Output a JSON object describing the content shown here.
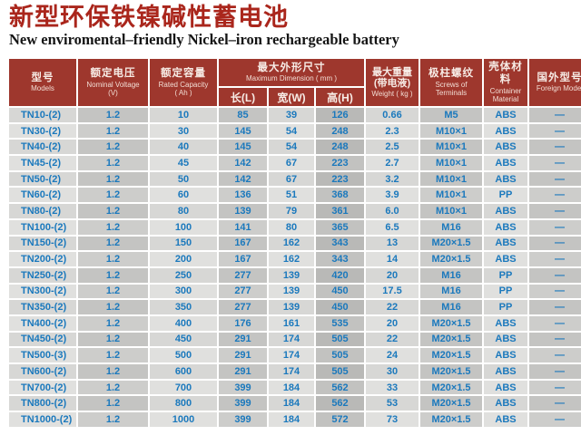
{
  "page": {
    "title_zh": "新型环保铁镍碱性蓄电池",
    "title_en": "New enviromental–friendly Nickel–iron rechargeable battery"
  },
  "colors": {
    "header_bg": "#9e372d",
    "title_red": "#aa261c",
    "cell_text_blue": "#1b79bd"
  },
  "table": {
    "headers": {
      "models": {
        "zh": "型号",
        "en": "Models"
      },
      "voltage": {
        "zh": "额定电压",
        "en": "Nominal Voltage",
        "unit": "(V)"
      },
      "capacity": {
        "zh": "额定容量",
        "en": "Rated Capacity",
        "unit": "( Ah )"
      },
      "dimension": {
        "zh": "最大外形尺寸",
        "en": "Maximum Dimension ( mm )",
        "sub": [
          "长(L)",
          "宽(W)",
          "高(H)"
        ]
      },
      "weight": {
        "zh": "最大重量",
        "zh2": "(带电液)",
        "en": "Weight ( kg )"
      },
      "screws": {
        "zh": "极柱螺纹",
        "en": "Screws of Terminals"
      },
      "container": {
        "zh": "壳体材料",
        "en": "Container Material"
      },
      "foreign": {
        "zh": "国外型号",
        "en": "Foreign Model"
      }
    },
    "columns": [
      "model",
      "voltage",
      "capacity",
      "length",
      "width",
      "height",
      "weight",
      "screws",
      "container",
      "foreign"
    ],
    "rows": [
      [
        "TN10-(2)",
        "1.2",
        "10",
        "85",
        "39",
        "126",
        "0.66",
        "M5",
        "ABS",
        "—"
      ],
      [
        "TN30-(2)",
        "1.2",
        "30",
        "145",
        "54",
        "248",
        "2.3",
        "M10×1",
        "ABS",
        "—"
      ],
      [
        "TN40-(2)",
        "1.2",
        "40",
        "145",
        "54",
        "248",
        "2.5",
        "M10×1",
        "ABS",
        "—"
      ],
      [
        "TN45-(2)",
        "1.2",
        "45",
        "142",
        "67",
        "223",
        "2.7",
        "M10×1",
        "ABS",
        "—"
      ],
      [
        "TN50-(2)",
        "1.2",
        "50",
        "142",
        "67",
        "223",
        "3.2",
        "M10×1",
        "ABS",
        "—"
      ],
      [
        "TN60-(2)",
        "1.2",
        "60",
        "136",
        "51",
        "368",
        "3.9",
        "M10×1",
        "PP",
        "—"
      ],
      [
        "TN80-(2)",
        "1.2",
        "80",
        "139",
        "79",
        "361",
        "6.0",
        "M10×1",
        "ABS",
        "—"
      ],
      [
        "TN100-(2)",
        "1.2",
        "100",
        "141",
        "80",
        "365",
        "6.5",
        "M16",
        "ABS",
        "—"
      ],
      [
        "TN150-(2)",
        "1.2",
        "150",
        "167",
        "162",
        "343",
        "13",
        "M20×1.5",
        "ABS",
        "—"
      ],
      [
        "TN200-(2)",
        "1.2",
        "200",
        "167",
        "162",
        "343",
        "14",
        "M20×1.5",
        "ABS",
        "—"
      ],
      [
        "TN250-(2)",
        "1.2",
        "250",
        "277",
        "139",
        "420",
        "20",
        "M16",
        "PP",
        "—"
      ],
      [
        "TN300-(2)",
        "1.2",
        "300",
        "277",
        "139",
        "450",
        "17.5",
        "M16",
        "PP",
        "—"
      ],
      [
        "TN350-(2)",
        "1.2",
        "350",
        "277",
        "139",
        "450",
        "22",
        "M16",
        "PP",
        "—"
      ],
      [
        "TN400-(2)",
        "1.2",
        "400",
        "176",
        "161",
        "535",
        "20",
        "M20×1.5",
        "ABS",
        "—"
      ],
      [
        "TN450-(2)",
        "1.2",
        "450",
        "291",
        "174",
        "505",
        "22",
        "M20×1.5",
        "ABS",
        "—"
      ],
      [
        "TN500-(3)",
        "1.2",
        "500",
        "291",
        "174",
        "505",
        "24",
        "M20×1.5",
        "ABS",
        "—"
      ],
      [
        "TN600-(2)",
        "1.2",
        "600",
        "291",
        "174",
        "505",
        "30",
        "M20×1.5",
        "ABS",
        "—"
      ],
      [
        "TN700-(2)",
        "1.2",
        "700",
        "399",
        "184",
        "562",
        "33",
        "M20×1.5",
        "ABS",
        "—"
      ],
      [
        "TN800-(2)",
        "1.2",
        "800",
        "399",
        "184",
        "562",
        "53",
        "M20×1.5",
        "ABS",
        "—"
      ],
      [
        "TN1000-(2)",
        "1.2",
        "1000",
        "399",
        "184",
        "572",
        "73",
        "M20×1.5",
        "ABS",
        "—"
      ]
    ]
  }
}
